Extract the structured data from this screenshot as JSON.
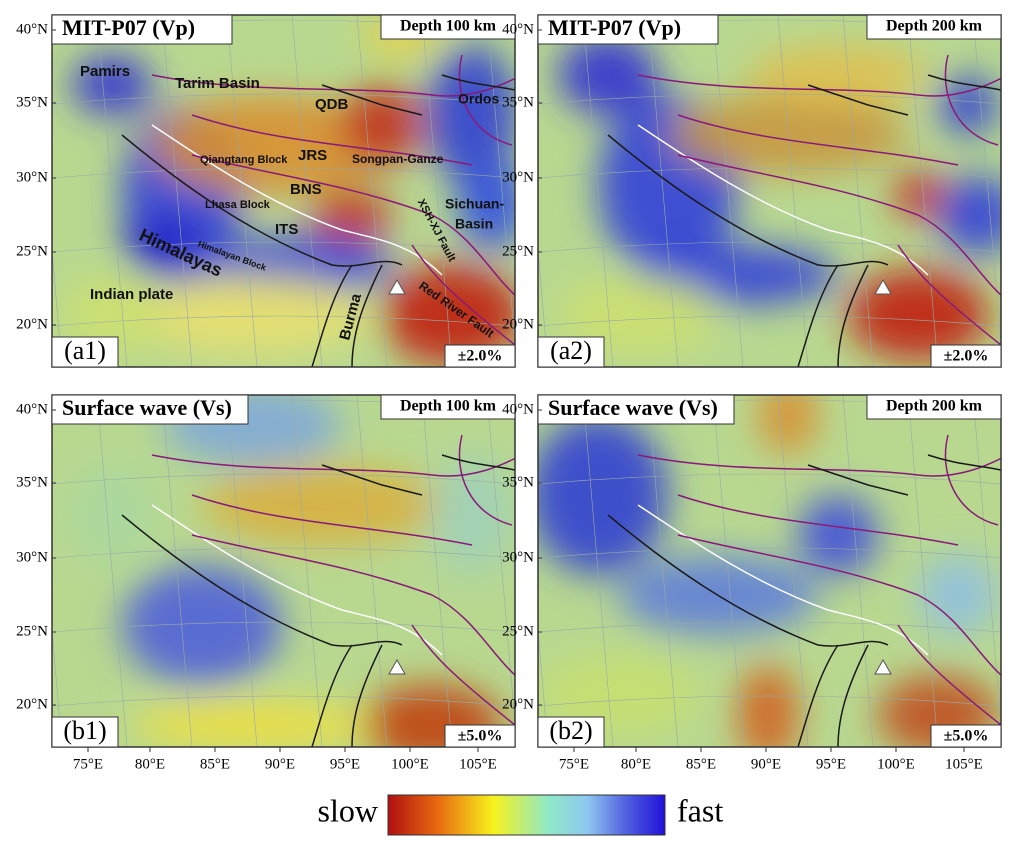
{
  "panels": [
    {
      "title": "MIT-P07 (Vp)",
      "depth": "Depth 100 km",
      "label": "(a1)",
      "scale": "±2.0%"
    },
    {
      "title": "MIT-P07 (Vp)",
      "depth": "Depth 200 km",
      "label": "(a2)",
      "scale": "±2.0%"
    },
    {
      "title": "Surface wave (Vs)",
      "depth": "Depth 100 km",
      "label": "(b1)",
      "scale": "±5.0%"
    },
    {
      "title": "Surface wave (Vs)",
      "depth": "Depth 200 km",
      "label": "(b2)",
      "scale": "±5.0%"
    }
  ],
  "lat_ticks": [
    "40°N",
    "35°N",
    "30°N",
    "25°N",
    "20°N"
  ],
  "lon_ticks": [
    "75°E",
    "80°E",
    "85°E",
    "90°E",
    "95°E",
    "100°E",
    "105°E"
  ],
  "annotations": [
    "Pamirs",
    "Tarim Basin",
    "QDB",
    "Ordos",
    "Qiangtang Block",
    "JRS",
    "Songpan-Ganze",
    "BNS",
    "Lhasa Block",
    "Sichuan-",
    "Basin",
    "ITS",
    "Himalayan Block",
    "Himalayas",
    "XSH-XJ Fault",
    "Indian plate",
    "Burma",
    "Red River Fault"
  ],
  "colorbar": {
    "low": "slow",
    "high": "fast"
  }
}
